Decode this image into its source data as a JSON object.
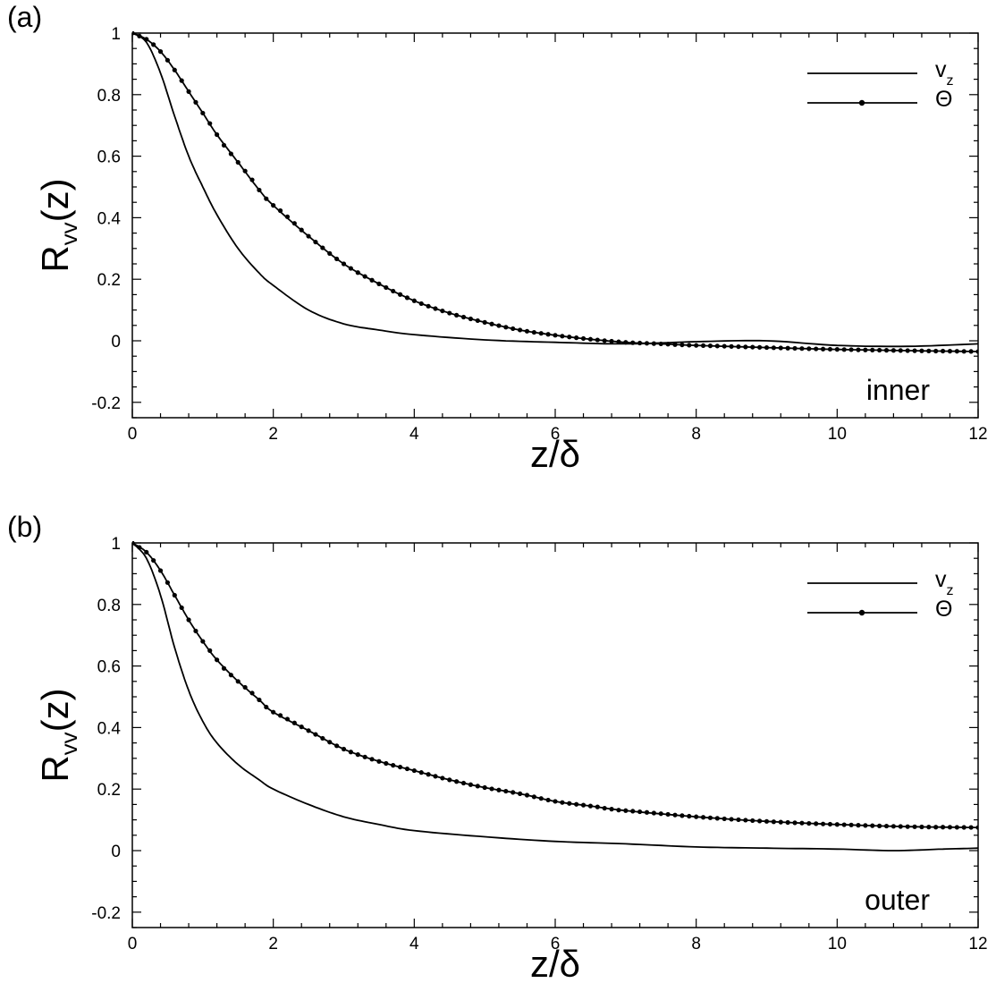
{
  "chart_data": [
    {
      "type": "line",
      "panel_label": "(a)",
      "annotation": "inner",
      "xlabel": "z/δ",
      "ylabel": {
        "main": "R",
        "sub": "vv",
        "rest": "(z)"
      },
      "xlim": [
        0,
        12
      ],
      "ylim": [
        -0.25,
        1.0
      ],
      "x_ticks": [
        0,
        2,
        4,
        6,
        8,
        10,
        12
      ],
      "y_ticks": [
        -0.2,
        0,
        0.2,
        0.4,
        0.6,
        0.8,
        1
      ],
      "x_tick_labels": [
        "0",
        "2",
        "4",
        "6",
        "8",
        "10",
        "12"
      ],
      "y_tick_labels": [
        "-0.2",
        "0",
        "0.2",
        "0.4",
        "0.6",
        "0.8",
        "1"
      ],
      "legend_position": "top-right",
      "series": [
        {
          "name": "v_z",
          "legend": {
            "main": "v",
            "sub": "z"
          },
          "marker": "none",
          "x": [
            0,
            0.2,
            0.4,
            0.6,
            0.8,
            1.0,
            1.2,
            1.5,
            1.8,
            2.0,
            2.5,
            3.0,
            3.5,
            4.0,
            5.0,
            6.0,
            7.0,
            8.0,
            9.0,
            10.0,
            11.0,
            12.0
          ],
          "y": [
            1.0,
            0.97,
            0.87,
            0.73,
            0.6,
            0.5,
            0.41,
            0.3,
            0.22,
            0.18,
            0.1,
            0.055,
            0.035,
            0.02,
            0.003,
            -0.005,
            -0.01,
            -0.003,
            0.0,
            -0.015,
            -0.018,
            -0.01
          ]
        },
        {
          "name": "Θ",
          "legend": {
            "main": "Θ"
          },
          "marker": "circle",
          "x": [
            0,
            0.2,
            0.4,
            0.6,
            0.8,
            1.0,
            1.2,
            1.5,
            1.8,
            2.0,
            2.5,
            3.0,
            3.5,
            4.0,
            4.5,
            5.0,
            5.5,
            6.0,
            6.5,
            7.0,
            7.5,
            8.0,
            9.0,
            10.0,
            11.0,
            12.0
          ],
          "y": [
            1.0,
            0.98,
            0.94,
            0.88,
            0.81,
            0.74,
            0.67,
            0.58,
            0.49,
            0.44,
            0.34,
            0.25,
            0.185,
            0.13,
            0.09,
            0.06,
            0.035,
            0.018,
            0.005,
            -0.005,
            -0.01,
            -0.015,
            -0.022,
            -0.028,
            -0.032,
            -0.035
          ]
        }
      ]
    },
    {
      "type": "line",
      "panel_label": "(b)",
      "annotation": "outer",
      "xlabel": "z/δ",
      "ylabel": {
        "main": "R",
        "sub": "vv",
        "rest": "(z)"
      },
      "xlim": [
        0,
        12
      ],
      "ylim": [
        -0.25,
        1.0
      ],
      "x_ticks": [
        0,
        2,
        4,
        6,
        8,
        10,
        12
      ],
      "y_ticks": [
        -0.2,
        0,
        0.2,
        0.4,
        0.6,
        0.8,
        1
      ],
      "x_tick_labels": [
        "0",
        "2",
        "4",
        "6",
        "8",
        "10",
        "12"
      ],
      "y_tick_labels": [
        "-0.2",
        "0",
        "0.2",
        "0.4",
        "0.6",
        "0.8",
        "1"
      ],
      "legend_position": "top-right",
      "series": [
        {
          "name": "v_z",
          "legend": {
            "main": "v",
            "sub": "z"
          },
          "marker": "none",
          "x": [
            0,
            0.2,
            0.4,
            0.6,
            0.8,
            1.0,
            1.2,
            1.5,
            1.8,
            2.0,
            2.5,
            3.0,
            3.5,
            4.0,
            5.0,
            6.0,
            7.0,
            8.0,
            9.0,
            10.0,
            10.8,
            11.5,
            12.0
          ],
          "y": [
            1.0,
            0.95,
            0.83,
            0.66,
            0.52,
            0.42,
            0.35,
            0.28,
            0.23,
            0.2,
            0.15,
            0.11,
            0.085,
            0.065,
            0.045,
            0.03,
            0.022,
            0.012,
            0.008,
            0.005,
            0.0,
            0.005,
            0.008
          ]
        },
        {
          "name": "Θ",
          "legend": {
            "main": "Θ"
          },
          "marker": "circle",
          "x": [
            0,
            0.2,
            0.4,
            0.6,
            0.8,
            1.0,
            1.2,
            1.5,
            1.8,
            2.0,
            2.5,
            3.0,
            3.5,
            4.0,
            4.5,
            5.0,
            5.5,
            6.0,
            6.5,
            7.0,
            8.0,
            9.0,
            10.0,
            11.0,
            12.0
          ],
          "y": [
            1.0,
            0.97,
            0.91,
            0.83,
            0.75,
            0.68,
            0.62,
            0.55,
            0.49,
            0.45,
            0.39,
            0.33,
            0.29,
            0.26,
            0.23,
            0.205,
            0.185,
            0.16,
            0.145,
            0.13,
            0.11,
            0.095,
            0.085,
            0.078,
            0.075
          ]
        }
      ]
    }
  ]
}
